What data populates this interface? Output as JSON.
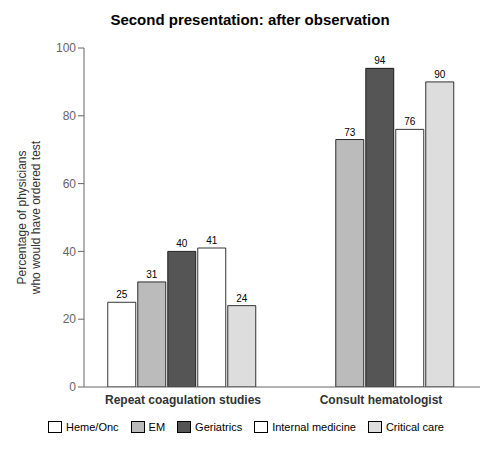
{
  "chart_data": {
    "type": "bar",
    "title": "Second presentation: after observation",
    "ylabel": "Percentage of physicians\nwho would have ordered test",
    "categories": [
      "Repeat coagulation studies",
      "Consult hematologist"
    ],
    "series": [
      {
        "name": "Heme/Onc",
        "color": "#ffffff",
        "values": [
          25,
          null
        ]
      },
      {
        "name": "EM",
        "color": "#bbbbbb",
        "values": [
          31,
          73
        ]
      },
      {
        "name": "Geriatrics",
        "color": "#555555",
        "values": [
          40,
          94
        ]
      },
      {
        "name": "Internal medicine",
        "color": "#ffffff",
        "values": [
          41,
          76
        ]
      },
      {
        "name": "Critical care",
        "color": "#dddddd",
        "values": [
          24,
          90
        ]
      }
    ],
    "ylim": [
      0,
      100
    ],
    "yticks": [
      0,
      20,
      40,
      60,
      80,
      100
    ],
    "grid": false,
    "legend": "bottom",
    "data_labels": true
  }
}
